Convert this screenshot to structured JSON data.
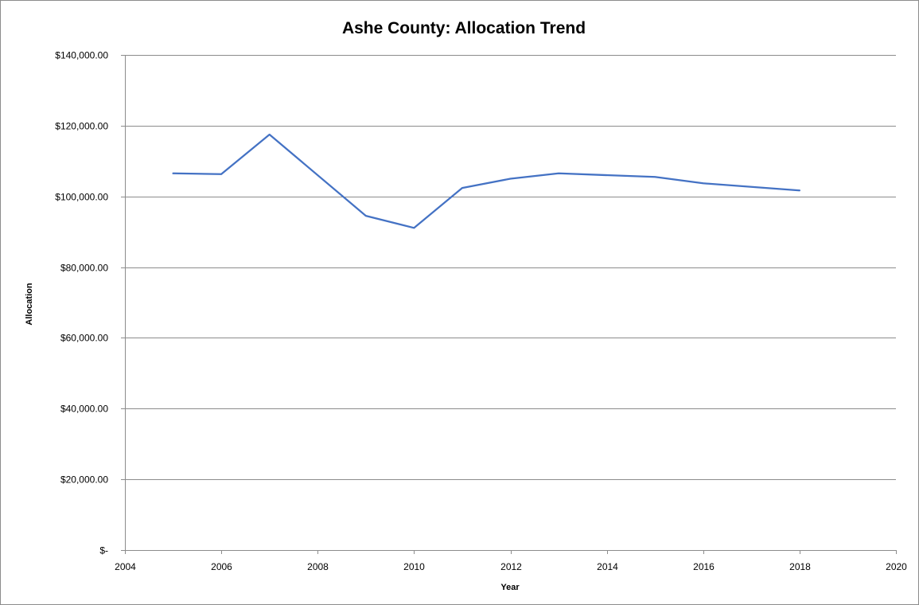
{
  "chart_data": {
    "type": "scatter",
    "title": "Ashe County: Allocation Trend",
    "xlabel": "Year",
    "ylabel": "Allocation",
    "xlim": [
      2004,
      2020
    ],
    "ylim": [
      0,
      140000
    ],
    "x_ticks": [
      2004,
      2006,
      2008,
      2010,
      2012,
      2014,
      2016,
      2018,
      2020
    ],
    "y_ticks": [
      {
        "value": 0,
        "label": "$-"
      },
      {
        "value": 20000,
        "label": "$20,000.00"
      },
      {
        "value": 40000,
        "label": "$40,000.00"
      },
      {
        "value": 60000,
        "label": "$60,000.00"
      },
      {
        "value": 80000,
        "label": "$80,000.00"
      },
      {
        "value": 100000,
        "label": "$100,000.00"
      },
      {
        "value": 120000,
        "label": "$120,000.00"
      },
      {
        "value": 140000,
        "label": "$140,000.00"
      }
    ],
    "grid": true,
    "legend": "none",
    "series": [
      {
        "color": "#4472c4",
        "points": [
          {
            "x": 2005,
            "y": 106500
          },
          {
            "x": 2006,
            "y": 106300
          },
          {
            "x": 2007,
            "y": 117500
          },
          {
            "x": 2009,
            "y": 94500
          },
          {
            "x": 2010,
            "y": 91100
          },
          {
            "x": 2011,
            "y": 102400
          },
          {
            "x": 2012,
            "y": 105000
          },
          {
            "x": 2013,
            "y": 106500
          },
          {
            "x": 2015,
            "y": 105500
          },
          {
            "x": 2016,
            "y": 103700
          },
          {
            "x": 2018,
            "y": 101700
          }
        ]
      }
    ]
  }
}
